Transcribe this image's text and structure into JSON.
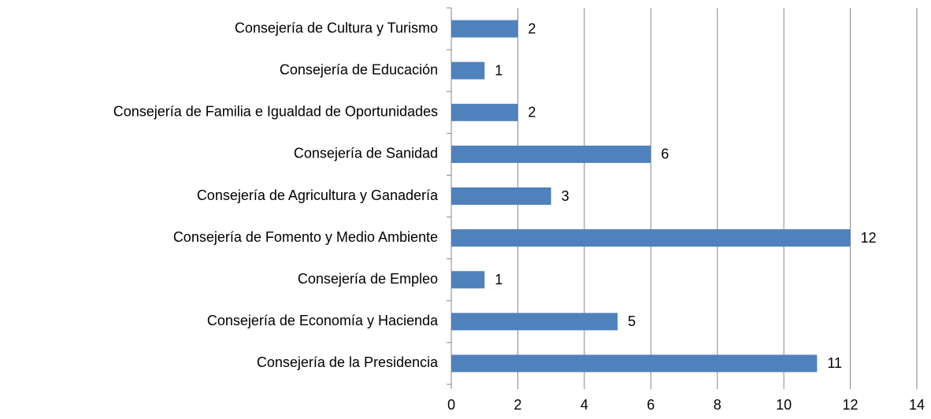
{
  "chart_data": {
    "type": "bar",
    "orientation": "horizontal",
    "categories": [
      "Consejería de Cultura y Turismo",
      "Consejería de Educación",
      "Consejería de Familia e Igualdad de Oportunidades",
      "Consejería de Sanidad",
      "Consejería de Agricultura y Ganadería",
      "Consejería de Fomento y Medio Ambiente",
      "Consejería de Empleo",
      "Consejería de Economía y Hacienda",
      "Consejería de la Presidencia"
    ],
    "values": [
      2,
      1,
      2,
      6,
      3,
      12,
      1,
      5,
      11
    ],
    "color": "#4f81bd",
    "xlim": [
      0,
      14
    ],
    "xticks": [
      0,
      2,
      4,
      6,
      8,
      10,
      12,
      14
    ],
    "grid": true
  }
}
